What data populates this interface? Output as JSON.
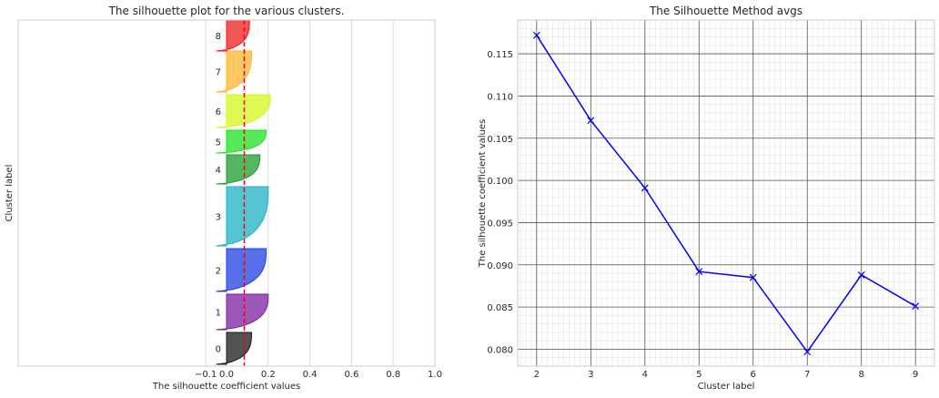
{
  "chart_data": [
    {
      "type": "area",
      "title": "The silhouette plot for the various clusters.",
      "xlabel": "The silhouette coefficient values",
      "ylabel": "Cluster label",
      "xlim": [
        -1.0,
        1.0
      ],
      "xticks": [
        -0.1,
        0.0,
        0.2,
        0.4,
        0.6,
        0.8,
        1.0
      ],
      "xtick_labels": [
        "−0.1",
        "0.0",
        "0.2",
        "0.4",
        "0.6",
        "0.8",
        "1.0"
      ],
      "grid": "vertical",
      "average_line": {
        "value": 0.085,
        "color": "#ff0000",
        "style": "dashed"
      },
      "clusters": [
        {
          "label": "0",
          "max": 0.12,
          "color": "#1a1a1a"
        },
        {
          "label": "1",
          "max": 0.2,
          "color": "#7b1fa2"
        },
        {
          "label": "2",
          "max": 0.19,
          "color": "#1f3fe0"
        },
        {
          "label": "3",
          "max": 0.2,
          "color": "#1fb0c4"
        },
        {
          "label": "4",
          "max": 0.16,
          "color": "#1e9c2e"
        },
        {
          "label": "5",
          "max": 0.19,
          "color": "#1ee01e"
        },
        {
          "label": "6",
          "max": 0.21,
          "color": "#d4f51a"
        },
        {
          "label": "7",
          "max": 0.12,
          "color": "#ffb52e"
        },
        {
          "label": "8",
          "max": 0.11,
          "color": "#ee1c1c"
        }
      ]
    },
    {
      "type": "line",
      "title": "The Silhouette Method avgs",
      "xlabel": "Cluster label",
      "ylabel": "The silhouette coefficient values",
      "xlim": [
        1.65,
        9.35
      ],
      "ylim": [
        0.078,
        0.119
      ],
      "xticks": [
        2,
        3,
        4,
        5,
        6,
        7,
        8,
        9
      ],
      "yticks": [
        0.08,
        0.085,
        0.09,
        0.095,
        0.1,
        0.105,
        0.11,
        0.115
      ],
      "ytick_labels": [
        "0.080",
        "0.085",
        "0.090",
        "0.095",
        "0.100",
        "0.105",
        "0.110",
        "0.115"
      ],
      "grid": "major and minor",
      "color": "#0000ff",
      "marker": "x",
      "x": [
        2,
        3,
        4,
        5,
        6,
        7,
        8,
        9
      ],
      "y": [
        0.1172,
        0.1071,
        0.0991,
        0.0892,
        0.0885,
        0.0797,
        0.0888,
        0.0851
      ]
    }
  ]
}
